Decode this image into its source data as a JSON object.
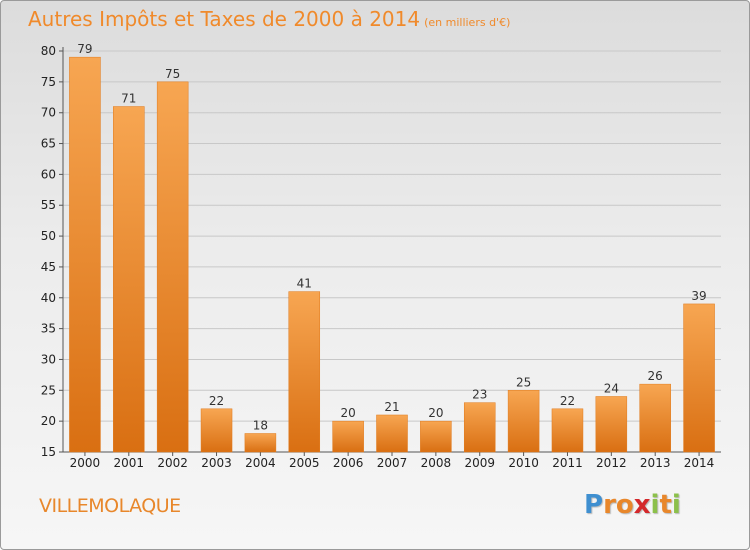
{
  "chart_data": {
    "type": "bar",
    "title": "Autres Impôts et Taxes de 2000 à 2014",
    "unit_note": "(en milliers d'€)",
    "categories": [
      "2000",
      "2001",
      "2002",
      "2003",
      "2004",
      "2005",
      "2006",
      "2007",
      "2008",
      "2009",
      "2010",
      "2011",
      "2012",
      "2013",
      "2014"
    ],
    "values": [
      79,
      71,
      75,
      22,
      18,
      41,
      20,
      21,
      20,
      23,
      25,
      22,
      24,
      26,
      39
    ],
    "ylim": [
      15,
      80
    ],
    "yticks": [
      15,
      20,
      25,
      30,
      35,
      40,
      45,
      50,
      55,
      60,
      65,
      70,
      75,
      80
    ],
    "grid": true,
    "bar_color": "#f0922e"
  },
  "footer": {
    "commune": "VILLEMOLAQUE",
    "logo_letters": [
      "P",
      "r",
      "o",
      "x",
      "i",
      "t",
      "i"
    ],
    "logo_colors": [
      "#3f8fd0",
      "#e8872b",
      "#e8872b",
      "#d4282b",
      "#8cc04b",
      "#e8872b",
      "#8cc04b"
    ]
  }
}
